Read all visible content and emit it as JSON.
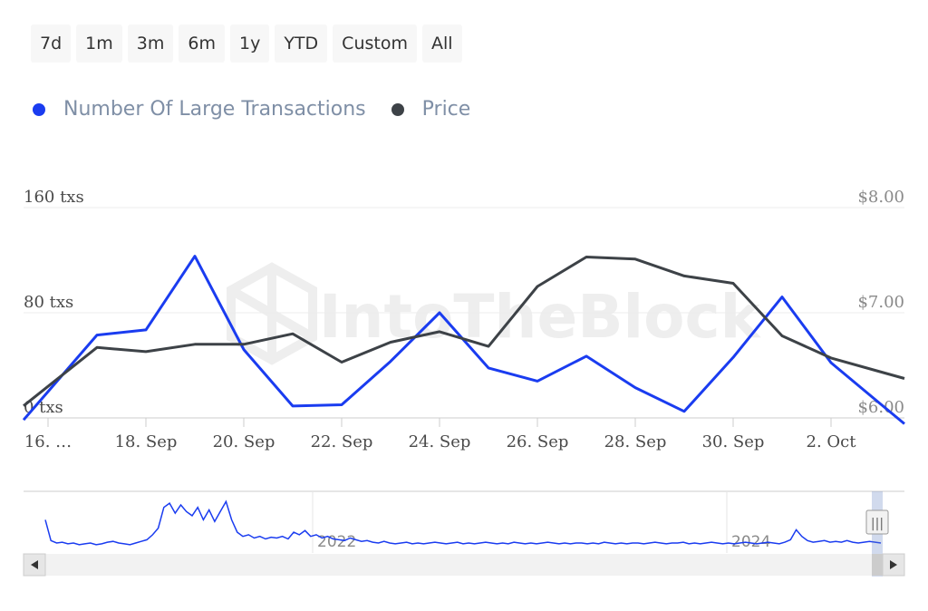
{
  "range_buttons": [
    "7d",
    "1m",
    "3m",
    "6m",
    "1y",
    "YTD",
    "Custom",
    "All"
  ],
  "legend": [
    {
      "label": "Number Of Large Transactions",
      "color": "#1a3cf0"
    },
    {
      "label": "Price",
      "color": "#3d4247"
    }
  ],
  "watermark": "IntoTheBlock",
  "chart_data": {
    "type": "line",
    "x": [
      "16 Sep",
      "17 Sep",
      "18 Sep",
      "19 Sep",
      "20 Sep",
      "21 Sep",
      "22 Sep",
      "23 Sep",
      "24 Sep",
      "25 Sep",
      "26 Sep",
      "27 Sep",
      "28 Sep",
      "29 Sep",
      "30 Sep",
      "1 Oct",
      "2 Oct",
      "3 Oct"
    ],
    "x_tick_labels": [
      "16. …",
      "18. Sep",
      "20. Sep",
      "22. Sep",
      "24. Sep",
      "26. Sep",
      "28. Sep",
      "30. Sep",
      "2. Oct"
    ],
    "y_left": {
      "ticks": [
        "160 txs",
        "80 txs",
        "0 txs"
      ],
      "range": [
        0,
        160
      ]
    },
    "y_right": {
      "ticks": [
        "$8.00",
        "$7.00",
        "$6.00"
      ],
      "range": [
        6,
        8
      ]
    },
    "grid": true,
    "legend_position": "top-left",
    "series": [
      {
        "name": "Number Of Large Transactions",
        "axis": "left",
        "color": "#1a3cf0",
        "values": [
          20,
          63,
          67,
          123,
          52,
          9,
          10,
          43,
          80,
          38,
          28,
          47,
          23,
          5,
          46,
          92,
          42,
          11
        ]
      },
      {
        "name": "Price",
        "axis": "right",
        "color": "#3d4247",
        "values": [
          6.3,
          6.67,
          6.63,
          6.7,
          6.7,
          6.8,
          6.53,
          6.72,
          6.82,
          6.68,
          7.25,
          7.53,
          7.51,
          7.35,
          7.28,
          6.78,
          6.57,
          6.44
        ]
      }
    ],
    "navigator": {
      "x_labels": [
        "2022",
        "2024"
      ],
      "values": [
        40,
        15,
        12,
        13,
        11,
        12,
        10,
        11,
        12,
        10,
        11,
        13,
        14,
        12,
        11,
        10,
        12,
        14,
        16,
        22,
        30,
        55,
        60,
        48,
        58,
        50,
        45,
        55,
        40,
        52,
        38,
        50,
        62,
        40,
        25,
        20,
        22,
        18,
        20,
        17,
        19,
        18,
        20,
        17,
        25,
        22,
        27,
        20,
        22,
        18,
        20,
        17,
        16,
        15,
        18,
        16,
        14,
        15,
        13,
        12,
        14,
        12,
        11,
        12,
        13,
        11,
        12,
        11,
        12,
        13,
        12,
        11,
        12,
        13,
        11,
        12,
        11,
        12,
        13,
        12,
        11,
        12,
        11,
        13,
        12,
        11,
        12,
        11,
        12,
        13,
        12,
        11,
        12,
        11,
        12,
        12,
        11,
        12,
        11,
        13,
        12,
        11,
        12,
        11,
        12,
        12,
        11,
        12,
        13,
        12,
        11,
        12,
        12,
        13,
        11,
        12,
        11,
        12,
        13,
        12,
        11,
        12,
        11,
        12,
        13,
        12,
        11,
        12,
        13,
        12,
        11,
        13,
        16,
        28,
        20,
        15,
        13,
        14,
        15,
        13,
        14,
        13,
        15,
        13,
        12,
        13,
        14,
        13,
        12
      ]
    }
  },
  "nav_buttons": {
    "left": "◂",
    "right": "▸",
    "handle": "|||"
  }
}
